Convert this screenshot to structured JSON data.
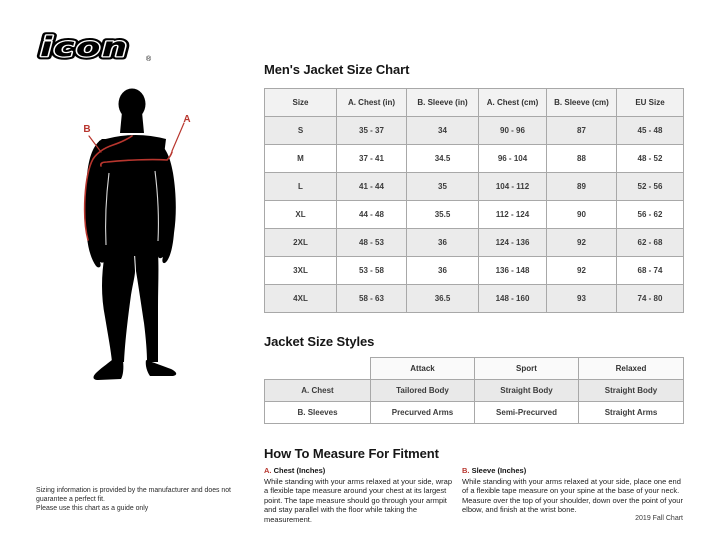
{
  "brand": {
    "logo_text": "icon",
    "registered_mark": "®"
  },
  "figure": {
    "label_a": "A",
    "label_b": "B"
  },
  "size_chart": {
    "title": "Men's Jacket Size Chart",
    "columns": [
      "Size",
      "A. Chest (in)",
      "B. Sleeve (in)",
      "A. Chest (cm)",
      "B. Sleeve (cm)",
      "EU Size"
    ],
    "rows": [
      [
        "S",
        "35 - 37",
        "34",
        "90 - 96",
        "87",
        "45 - 48"
      ],
      [
        "M",
        "37 - 41",
        "34.5",
        "96 - 104",
        "88",
        "48 - 52"
      ],
      [
        "L",
        "41 - 44",
        "35",
        "104 - 112",
        "89",
        "52 - 56"
      ],
      [
        "XL",
        "44 - 48",
        "35.5",
        "112 - 124",
        "90",
        "56 - 62"
      ],
      [
        "2XL",
        "48 - 53",
        "36",
        "124 - 136",
        "92",
        "62 - 68"
      ],
      [
        "3XL",
        "53 - 58",
        "36",
        "136 - 148",
        "92",
        "68 - 74"
      ],
      [
        "4XL",
        "58 - 63",
        "36.5",
        "148 - 160",
        "93",
        "74 - 80"
      ]
    ]
  },
  "size_styles": {
    "title": "Jacket Size Styles",
    "columns": [
      "",
      "Attack",
      "Sport",
      "Relaxed"
    ],
    "rows": [
      [
        "A. Chest",
        "Tailored Body",
        "Straight Body",
        "Straight Body"
      ],
      [
        "B. Sleeves",
        "Precurved Arms",
        "Semi-Precurved",
        "Straight Arms"
      ]
    ]
  },
  "measure": {
    "title": "How To Measure For Fitment",
    "sections": [
      {
        "label_prefix": "A.",
        "label": "Chest (Inches)",
        "text": "While standing with your arms relaxed at your side, wrap a flexible tape measure around your chest at its largest point. The tape measure should go through your armpit and stay parallel with the floor while taking the measurement."
      },
      {
        "label_prefix": "B.",
        "label": "Sleeve (Inches)",
        "text": "While standing with your arms relaxed at your side, place one end of a flexible tape measure on your spine at the base of your neck. Measure over the top of your shoulder, down over the point of your elbow, and finish at the wrist bone."
      }
    ]
  },
  "footer": {
    "disclaimer": "Sizing information is provided by the manufacturer and does not guarantee a perfect fit.\nPlease use this chart as a guide only",
    "chart_version": "2019 Fall Chart"
  },
  "colors": {
    "accent_red": "#b8362e",
    "silhouette_black": "#000000",
    "row_shade": "#ebebeb",
    "table_border": "#a8a8a8"
  }
}
